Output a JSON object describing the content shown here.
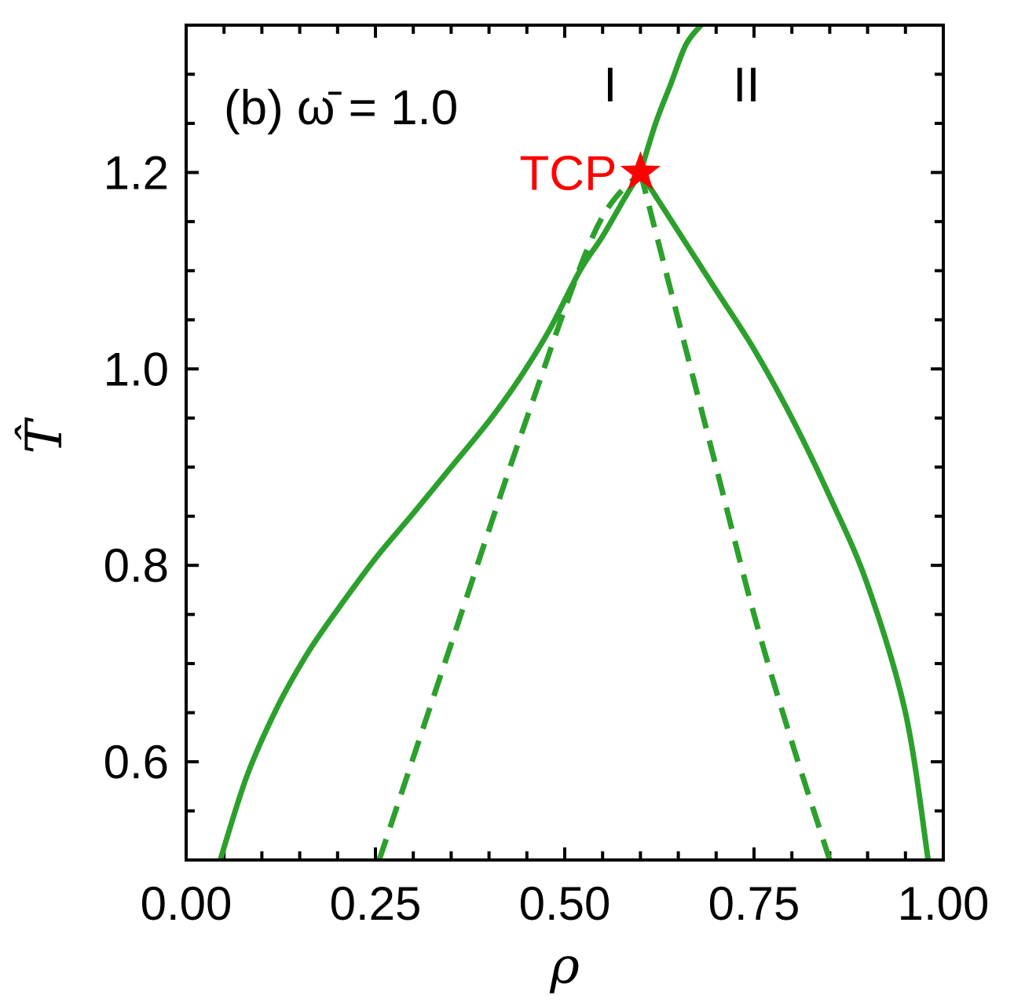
{
  "chart_data": {
    "type": "line",
    "title": "",
    "annotation": "(b) ω̄ = 1.0",
    "xlabel": "ρ",
    "ylabel": "T̂",
    "xlim": [
      0.0,
      1.0
    ],
    "ylim": [
      0.5,
      1.35
    ],
    "x_ticks": [
      "0.00",
      "0.25",
      "0.50",
      "0.75",
      "1.00"
    ],
    "y_ticks": [
      "0.6",
      "0.8",
      "1.0",
      "1.2"
    ],
    "grid": false,
    "legend": "none",
    "colors": {
      "curve": "#2ca02c",
      "tcp": "#ff0000"
    },
    "tcp": {
      "x": 0.6,
      "y": 1.2,
      "label": "TCP"
    },
    "regions": [
      {
        "label": "I",
        "x": 0.56,
        "y": 1.29
      },
      {
        "label": "II",
        "x": 0.74,
        "y": 1.29
      }
    ],
    "series": [
      {
        "style": "solid",
        "x": [
          0.045,
          0.08,
          0.12,
          0.16,
          0.2,
          0.25,
          0.3,
          0.35,
          0.4,
          0.44,
          0.48,
          0.52,
          0.55,
          0.58,
          0.6
        ],
        "y": [
          0.5,
          0.585,
          0.655,
          0.71,
          0.755,
          0.807,
          0.853,
          0.9,
          0.947,
          0.99,
          1.04,
          1.1,
          1.135,
          1.175,
          1.2
        ]
      },
      {
        "style": "solid",
        "x": [
          0.6,
          0.62,
          0.64,
          0.66,
          0.68
        ],
        "y": [
          1.2,
          1.25,
          1.29,
          1.33,
          1.35
        ]
      },
      {
        "style": "solid",
        "x": [
          0.6,
          0.65,
          0.7,
          0.75,
          0.8,
          0.85,
          0.9,
          0.95,
          0.98
        ],
        "y": [
          1.2,
          1.14,
          1.08,
          1.02,
          0.95,
          0.87,
          0.78,
          0.65,
          0.5
        ]
      },
      {
        "style": "dashed",
        "x": [
          0.255,
          0.35,
          0.45,
          0.54,
          0.6
        ],
        "y": [
          0.5,
          0.72,
          0.95,
          1.14,
          1.2
        ]
      },
      {
        "style": "dashed",
        "x": [
          0.6,
          0.65,
          0.7,
          0.75,
          0.8,
          0.85
        ],
        "y": [
          1.2,
          1.05,
          0.9,
          0.75,
          0.62,
          0.5
        ]
      }
    ]
  }
}
